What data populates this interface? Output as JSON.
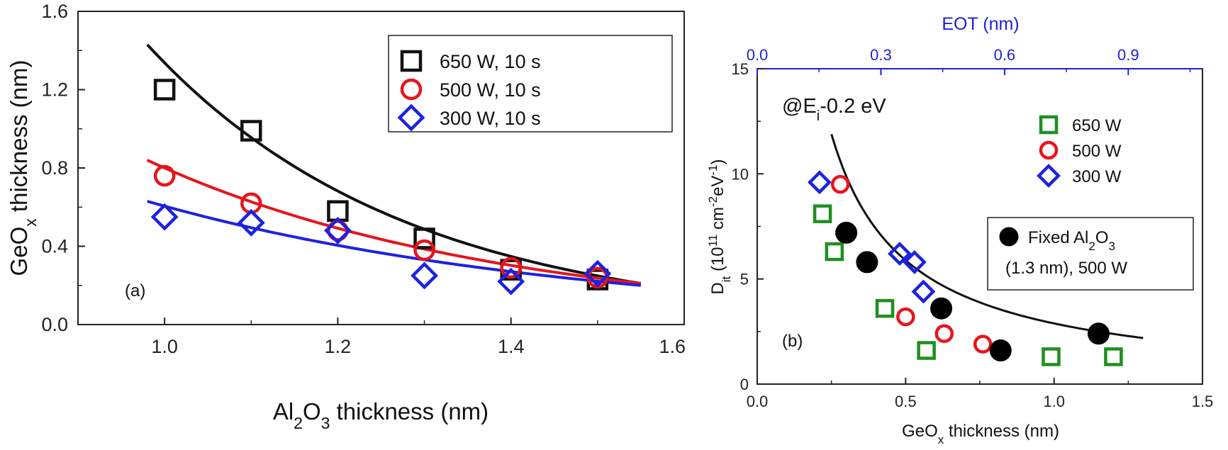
{
  "colors": {
    "s650a": "#111111",
    "s500": "#e8141c",
    "s300": "#1c22e0",
    "s650b": "#1f8f1f",
    "fixed": "#000000",
    "eot_axis": "#1f1fd6"
  },
  "chart_data": [
    {
      "type": "scatter",
      "panel_label": "(a)",
      "xlabel_parts": [
        "Al",
        "2",
        "O",
        "3",
        " thickness (nm)"
      ],
      "ylabel_parts": [
        "GeO",
        "x",
        " thickness (nm)"
      ],
      "xlim": [
        0.9,
        1.6
      ],
      "ylim": [
        0.0,
        1.6
      ],
      "xticks": [
        1.0,
        1.2,
        1.4
      ],
      "xticks_labels": [
        "1.0",
        "1.2",
        "1.4"
      ],
      "xtick_edge_label": "1.6",
      "yticks": [
        0.0,
        0.4,
        0.8,
        1.2,
        1.6
      ],
      "yticks_labels": [
        "0.0",
        "0.4",
        "0.8",
        "1.2",
        "1.6"
      ],
      "legend_position": "top-right",
      "series": [
        {
          "name": "650 W, 10 s",
          "marker": "square",
          "color_key": "s650a",
          "x": [
            1.0,
            1.1,
            1.2,
            1.3,
            1.4,
            1.5
          ],
          "y": [
            1.2,
            0.99,
            0.58,
            0.44,
            0.28,
            0.23
          ],
          "fit": {
            "x0": 0.98,
            "x1": 1.55,
            "y0": 1.43,
            "y1": 0.21
          }
        },
        {
          "name": "500 W, 10 s",
          "marker": "circle",
          "color_key": "s500",
          "x": [
            1.0,
            1.1,
            1.2,
            1.3,
            1.4,
            1.5
          ],
          "y": [
            0.76,
            0.62,
            0.48,
            0.38,
            0.29,
            0.24
          ],
          "fit": {
            "x0": 0.98,
            "x1": 1.55,
            "y0": 0.84,
            "y1": 0.21
          }
        },
        {
          "name": "300 W, 10 s",
          "marker": "diamond",
          "color_key": "s300",
          "x": [
            1.0,
            1.1,
            1.2,
            1.3,
            1.4,
            1.5
          ],
          "y": [
            0.55,
            0.52,
            0.48,
            0.25,
            0.22,
            0.26
          ],
          "fit": {
            "x0": 0.98,
            "x1": 1.55,
            "y0": 0.63,
            "y1": 0.2
          }
        }
      ]
    },
    {
      "type": "scatter",
      "panel_label": "(b)",
      "xlabel_parts": [
        "GeO",
        "x",
        " thickness (nm)"
      ],
      "ylabel_parts": [
        "D",
        "it",
        " (10",
        "11",
        " cm",
        "-2",
        "eV",
        "-1",
        ")"
      ],
      "top_axis_label": "EOT (nm)",
      "annotation_parts": [
        "@E",
        "i",
        "-0.2 eV"
      ],
      "xlim": [
        0.0,
        1.5
      ],
      "ylim": [
        0,
        15
      ],
      "xticks": [
        0.0,
        0.5,
        1.0,
        1.5
      ],
      "xticks_labels": [
        "0.0",
        "0.5",
        "1.0",
        "1.5"
      ],
      "yticks": [
        0,
        5,
        10,
        15
      ],
      "yticks_labels": [
        "0",
        "5",
        "10",
        "15"
      ],
      "top_xlim": [
        0.0,
        1.08
      ],
      "top_xticks": [
        0.0,
        0.3,
        0.6,
        0.9
      ],
      "top_xticks_labels": [
        "0.0",
        "0.3",
        "0.6",
        "0.9"
      ],
      "legend_position": "top-right",
      "series": [
        {
          "name": "650 W",
          "marker": "square",
          "color_key": "s650b",
          "x": [
            0.22,
            0.26,
            0.43,
            0.57,
            0.99,
            1.2
          ],
          "y": [
            8.1,
            6.3,
            3.6,
            1.6,
            1.3,
            1.3
          ]
        },
        {
          "name": "500 W",
          "marker": "circle",
          "color_key": "s500",
          "x": [
            0.28,
            0.5,
            0.63,
            0.76
          ],
          "y": [
            9.5,
            3.2,
            2.4,
            1.9
          ]
        },
        {
          "name": "300 W",
          "marker": "diamond",
          "color_key": "s300",
          "x": [
            0.21,
            0.48,
            0.53,
            0.56
          ],
          "y": [
            9.6,
            6.2,
            5.8,
            4.4
          ]
        },
        {
          "name_parts": [
            "Fixed Al",
            "2",
            "O",
            "3"
          ],
          "name_line2": "(1.3 nm), 500 W",
          "marker": "filled-circle",
          "color_key": "fixed",
          "x": [
            0.3,
            0.37,
            0.62,
            0.82,
            1.15
          ],
          "y": [
            7.2,
            5.8,
            3.6,
            1.6,
            2.4
          ]
        }
      ],
      "fit": {
        "x0": 0.25,
        "x1": 1.3,
        "a": 3.0,
        "b": -0.115
      }
    }
  ]
}
